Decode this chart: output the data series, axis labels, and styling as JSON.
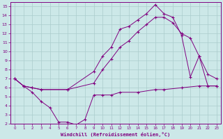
{
  "xlabel": "Windchill (Refroidissement éolien,°C)",
  "bg_color": "#cce8e8",
  "line_color": "#800080",
  "grid_color": "#aacccc",
  "xlim": [
    -0.5,
    23.5
  ],
  "ylim": [
    2,
    15.5
  ],
  "xticks": [
    0,
    1,
    2,
    3,
    4,
    5,
    6,
    7,
    8,
    9,
    10,
    11,
    12,
    13,
    14,
    15,
    16,
    17,
    18,
    19,
    20,
    21,
    22,
    23
  ],
  "yticks": [
    2,
    3,
    4,
    5,
    6,
    7,
    8,
    9,
    10,
    11,
    12,
    13,
    14,
    15
  ],
  "line1_x": [
    0,
    1,
    2,
    3,
    4,
    5,
    6,
    7,
    8,
    9,
    10,
    11,
    12,
    14,
    16,
    17,
    19,
    21,
    22,
    23
  ],
  "line1_y": [
    7.0,
    6.2,
    5.5,
    4.5,
    3.8,
    2.2,
    2.2,
    1.9,
    2.5,
    5.2,
    5.2,
    5.2,
    5.5,
    5.5,
    5.8,
    5.8,
    6.0,
    6.2,
    6.2,
    6.2
  ],
  "line2_x": [
    0,
    1,
    2,
    3,
    6,
    9,
    10,
    11,
    12,
    13,
    14,
    15,
    16,
    17,
    18,
    19,
    20,
    21,
    22,
    23
  ],
  "line2_y": [
    7.0,
    6.2,
    6.0,
    5.8,
    5.8,
    7.8,
    9.5,
    10.5,
    12.5,
    12.8,
    13.5,
    14.2,
    15.2,
    14.2,
    13.8,
    11.8,
    7.2,
    9.5,
    7.5,
    7.0
  ],
  "line3_x": [
    0,
    1,
    2,
    3,
    6,
    9,
    10,
    11,
    12,
    13,
    14,
    15,
    16,
    17,
    18,
    19,
    20,
    21,
    22,
    23
  ],
  "line3_y": [
    7.0,
    6.2,
    6.0,
    5.8,
    5.8,
    6.5,
    8.0,
    9.2,
    10.5,
    11.2,
    12.2,
    13.0,
    13.8,
    13.8,
    13.2,
    12.0,
    11.5,
    9.5,
    6.2,
    6.2
  ]
}
